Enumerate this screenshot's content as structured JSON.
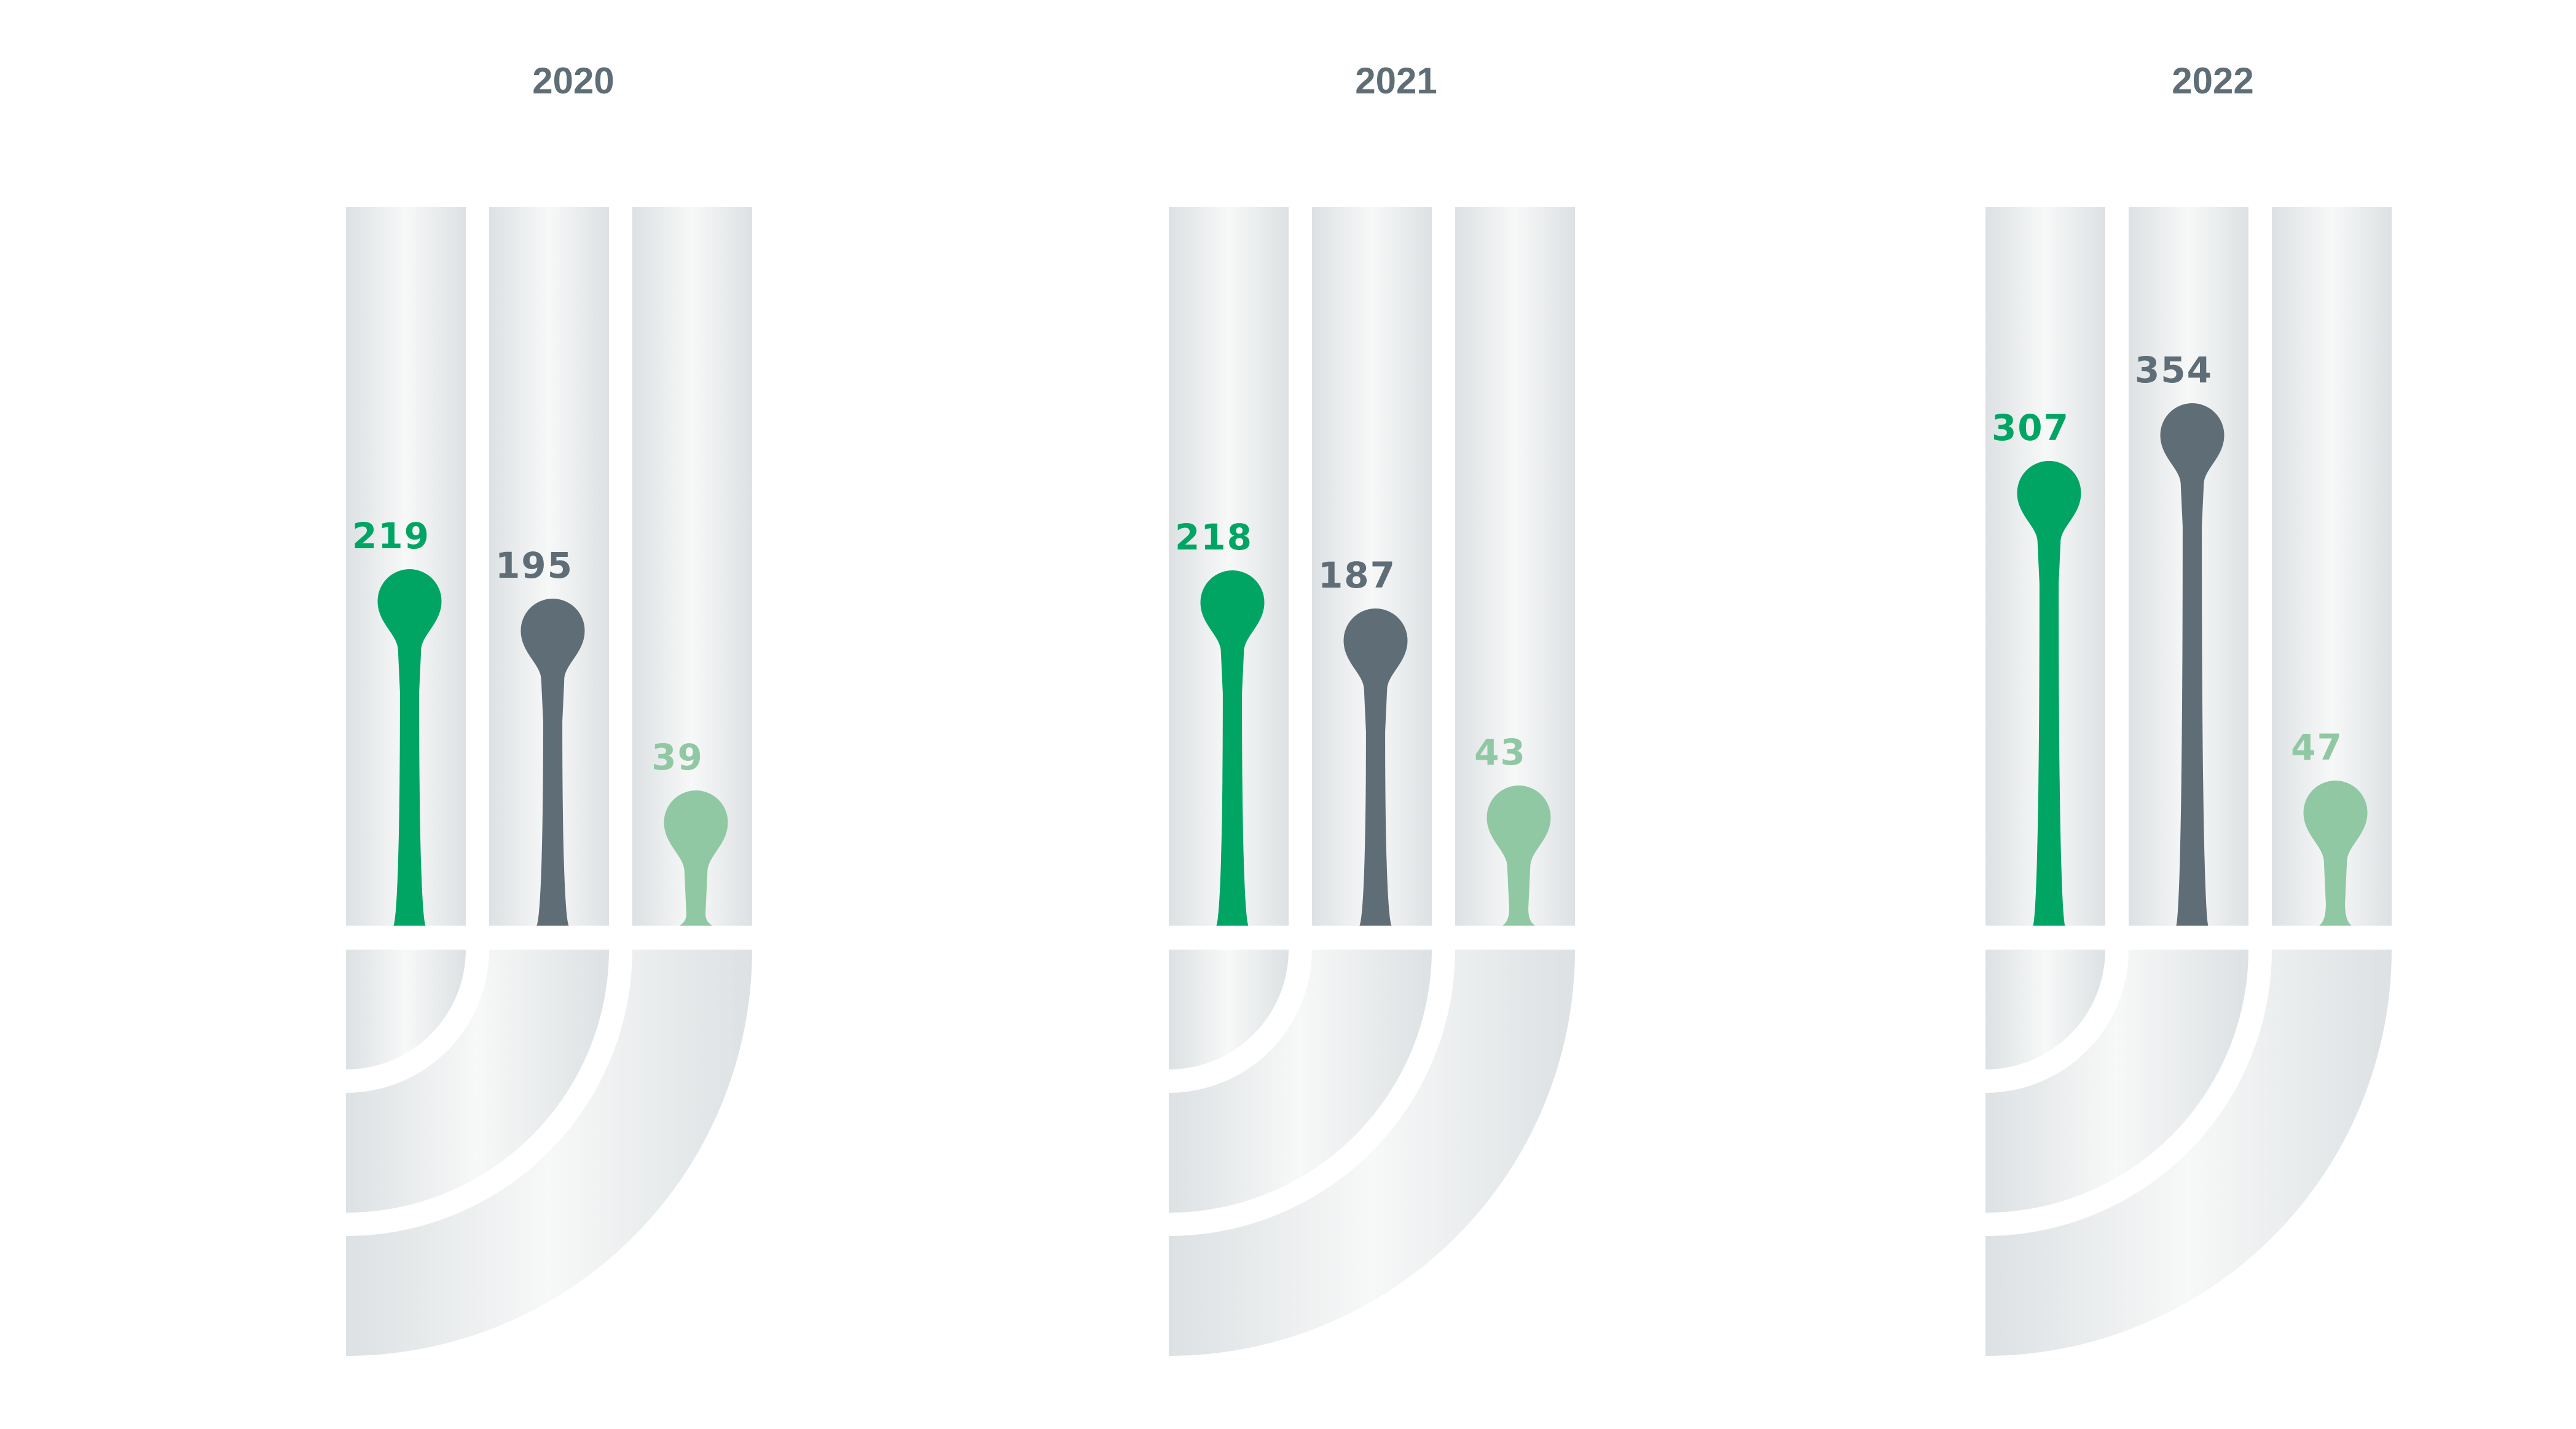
{
  "chart_data": {
    "type": "bar",
    "categories": [
      "2020",
      "2021",
      "2022"
    ],
    "series": [
      {
        "values": [
          219,
          218,
          307
        ]
      },
      {
        "values": [
          195,
          187,
          354
        ]
      },
      {
        "values": [
          39,
          43,
          47
        ]
      }
    ],
    "ylim": [
      0,
      420
    ]
  },
  "colors": {
    "series": [
      "#00a564",
      "#5f6e76",
      "#90c8a4"
    ],
    "year_label": "#5f6e76",
    "track_light": "#f7f8f8",
    "track_dark": "#dde1e3"
  }
}
